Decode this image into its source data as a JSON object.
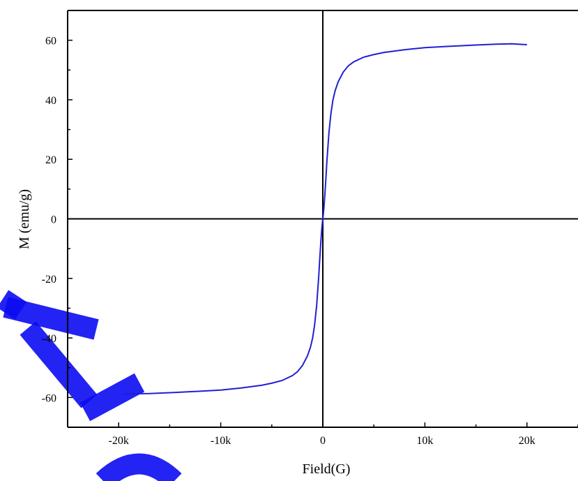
{
  "chart_data": {
    "type": "line",
    "xlabel": "Field(G)",
    "ylabel": "M (emu/g)",
    "xlim": [
      -25000,
      25000
    ],
    "ylim": [
      -70,
      70
    ],
    "x_ticks": [
      -20000,
      -10000,
      0,
      10000,
      20000
    ],
    "x_tick_labels": [
      "-20k",
      "-10k",
      "0",
      "10k",
      "20k"
    ],
    "y_ticks": [
      -60,
      -40,
      -20,
      0,
      20,
      40,
      60
    ],
    "y_tick_labels": [
      "-60",
      "-40",
      "-20",
      "0",
      "20",
      "40",
      "60"
    ],
    "grid": false,
    "legend": "none",
    "series": [
      {
        "color": "#1f1fd6",
        "x": [
          -19500,
          -17000,
          -15000,
          -12000,
          -10000,
          -8000,
          -6000,
          -5000,
          -4000,
          -3000,
          -2500,
          -2000,
          -1500,
          -1200,
          -1000,
          -800,
          -600,
          -400,
          -300,
          -200,
          -100,
          -50,
          0,
          50,
          100,
          200,
          300,
          400,
          600,
          800,
          1000,
          1200,
          1500,
          2000,
          2500,
          3000,
          4000,
          5000,
          6000,
          8000,
          10000,
          12000,
          15000,
          17000,
          18500,
          20000
        ],
        "y": [
          -58.8,
          -58.7,
          -58.4,
          -57.9,
          -57.5,
          -56.8,
          -55.9,
          -55.2,
          -54.3,
          -52.7,
          -51.4,
          -49.3,
          -46.0,
          -43.0,
          -40.0,
          -35.5,
          -29.0,
          -19.5,
          -13.5,
          -8.0,
          -3.5,
          -1.5,
          0.0,
          1.5,
          3.5,
          8.0,
          13.5,
          19.5,
          29.0,
          35.5,
          40.0,
          43.0,
          46.0,
          49.3,
          51.4,
          52.7,
          54.3,
          55.2,
          55.9,
          56.8,
          57.5,
          57.9,
          58.4,
          58.7,
          58.8,
          58.5
        ]
      }
    ]
  },
  "colors": {
    "curve": "#1f1fd6",
    "watermark": "#0b0bf2",
    "axes": "#000000"
  }
}
